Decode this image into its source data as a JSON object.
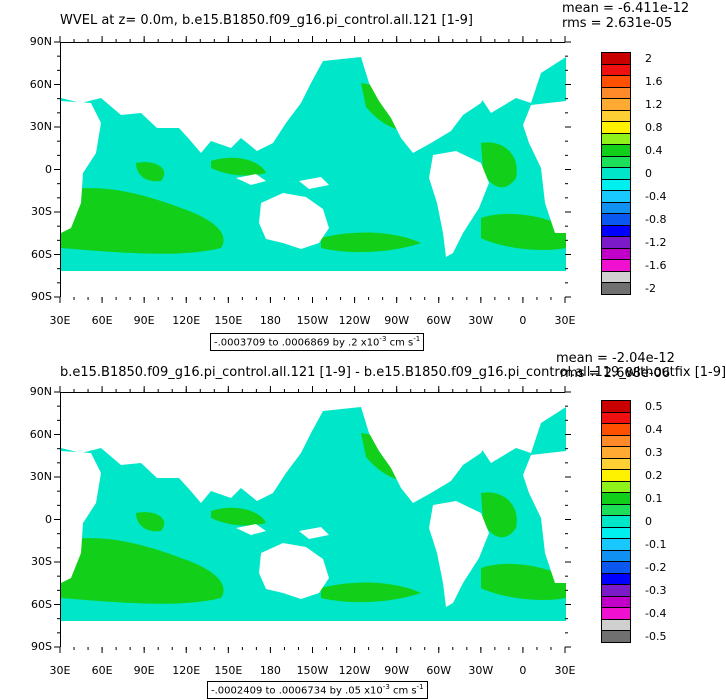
{
  "panel_top": {
    "title": "WVEL at z=   0.0m, b.e15.B1850.f09_g16.pi_control.all.121 [1-9]",
    "stats": {
      "mean": "mean = -6.411e-12",
      "rms": "rms = 2.631e-05"
    },
    "contour_info": {
      "text": "-.0003709 to .0006869 by .2 x10",
      "exp": "-3",
      "unit": " cm s",
      "unit_exp": "-1"
    },
    "colorbar": {
      "labels": [
        "2",
        "1.6",
        "1.2",
        "0.8",
        "0.4",
        "0",
        "-0.4",
        "-0.8",
        "-1.2",
        "-1.6",
        "-2"
      ],
      "colors": [
        "#c80000",
        "#f01010",
        "#ff5000",
        "#ff8a2a",
        "#ffaa33",
        "#ffd033",
        "#fff200",
        "#8ff21a",
        "#12d01a",
        "#1ce05a",
        "#00e6c8",
        "#00f0f0",
        "#18c8ff",
        "#1090f0",
        "#0a58f0",
        "#0000ff",
        "#7a1ac8",
        "#c000c8",
        "#f010d0",
        "#d0d0d0",
        "#707070"
      ]
    }
  },
  "panel_bottom": {
    "title": "b.e15.B1850.f09_g16.pi_control.all.121 [1-9] - b.e15.B1850.f09_g16.pi_control.all.119_withoutfix [1-9]",
    "stats": {
      "mean": "mean = -2.04e-12",
      "rms": "rms = 2.668e-06"
    },
    "contour_info": {
      "text": "-.0002409 to .0006734 by .05 x10",
      "exp": "-3",
      "unit": " cm s",
      "unit_exp": "-1"
    },
    "colorbar": {
      "labels": [
        "0.5",
        "0.4",
        "0.3",
        "0.2",
        "0.1",
        "0",
        "-0.1",
        "-0.2",
        "-0.3",
        "-0.4",
        "-0.5"
      ],
      "colors": [
        "#c80000",
        "#f01010",
        "#ff5000",
        "#ff8a2a",
        "#ffaa33",
        "#ffd033",
        "#fff200",
        "#8ff21a",
        "#12d01a",
        "#1ce05a",
        "#00e6c8",
        "#00f0f0",
        "#18c8ff",
        "#1090f0",
        "#0a58f0",
        "#0000ff",
        "#7a1ac8",
        "#c000c8",
        "#f010d0",
        "#d0d0d0",
        "#707070"
      ]
    }
  },
  "axes": {
    "lat_labels": [
      "90N",
      "60N",
      "30N",
      "0",
      "30S",
      "60S",
      "90S"
    ],
    "lon_labels": [
      "30E",
      "60E",
      "90E",
      "120E",
      "150E",
      "180",
      "150W",
      "120W",
      "90W",
      "60W",
      "30W",
      "0",
      "30E"
    ]
  },
  "map_colors": {
    "positive": "#12d01a",
    "negative": "#00e6c8",
    "land": "#ffffff"
  }
}
